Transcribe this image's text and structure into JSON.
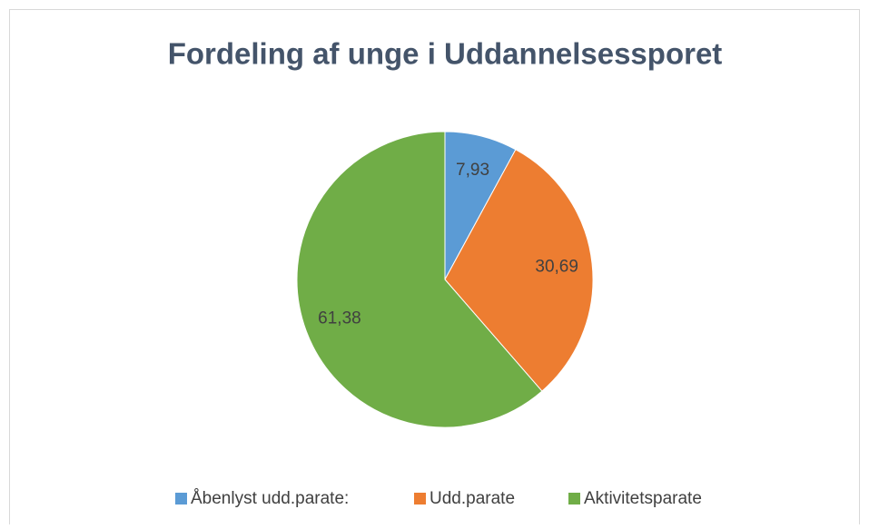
{
  "chart_data": {
    "type": "pie",
    "title": "Fordeling af unge i Uddannelsessporet",
    "categories": [
      "Åbenlyst udd.parate:",
      "Udd.parate",
      "Aktivitetsparate"
    ],
    "values": [
      7.93,
      30.69,
      61.38
    ],
    "value_labels": [
      "7,93",
      "30,69",
      "61,38"
    ],
    "colors": [
      "#5b9bd5",
      "#ed7d31",
      "#70ad47"
    ],
    "legend": "bottom"
  }
}
